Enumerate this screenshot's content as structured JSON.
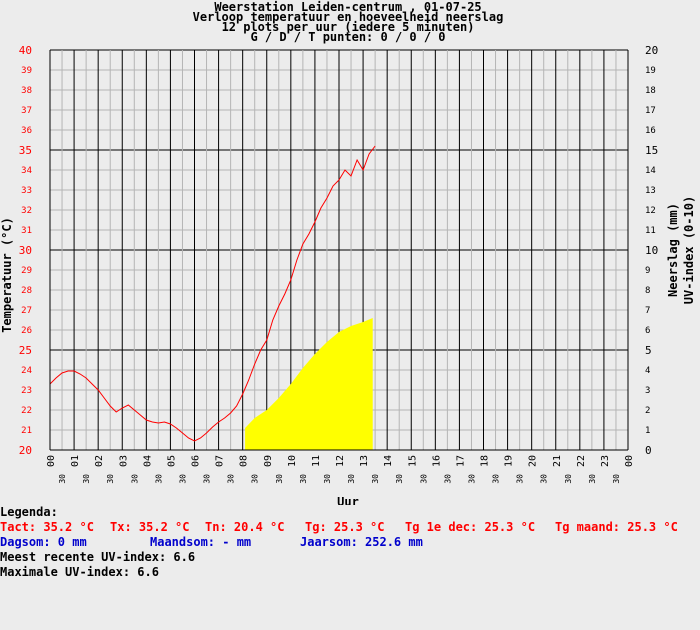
{
  "header": {
    "line1": "Weerstation Leiden-centrum , 01-07-25",
    "line2": "Verloop temperatuur en hoeveelheid neerslag",
    "line3": "12 plots per uur (iedere 5 minuten)",
    "line4": "G / D / T punten: 0 / 0 / 0"
  },
  "colors": {
    "temperature": "#ff0000",
    "uv": "#ffff00",
    "rain_blue": "#0000cc",
    "background": "#ececec"
  },
  "chart_data": {
    "type": "line",
    "xlabel": "Uur",
    "ylabel_left": "Temperatuur (°C)",
    "ylabel_right1": "Neerslag (mm)",
    "ylabel_right2": "UV-index (0-10)",
    "xlim": [
      0,
      24
    ],
    "ylim_left": [
      20,
      40
    ],
    "ylim_right": [
      0,
      20
    ],
    "x_ticks": [
      "00",
      "01",
      "02",
      "03",
      "04",
      "05",
      "06",
      "07",
      "08",
      "09",
      "10",
      "11",
      "12",
      "13",
      "14",
      "15",
      "16",
      "17",
      "18",
      "19",
      "20",
      "21",
      "22",
      "23",
      "00"
    ],
    "x_half_label": "30",
    "y_ticks_left": [
      20,
      21,
      22,
      23,
      24,
      25,
      26,
      27,
      28,
      29,
      30,
      31,
      32,
      33,
      34,
      35,
      36,
      37,
      38,
      39,
      40
    ],
    "y_ticks_right": [
      0,
      1,
      2,
      3,
      4,
      5,
      6,
      7,
      8,
      9,
      10,
      11,
      12,
      13,
      14,
      15,
      16,
      17,
      18,
      19,
      20
    ],
    "grid": true,
    "series": [
      {
        "kind": "temperature_line",
        "color": "#ff0000",
        "x": [
          0.0,
          0.25,
          0.5,
          0.75,
          1.0,
          1.25,
          1.5,
          1.75,
          2.0,
          2.25,
          2.5,
          2.75,
          3.0,
          3.25,
          3.5,
          3.75,
          4.0,
          4.25,
          4.5,
          4.75,
          5.0,
          5.25,
          5.5,
          5.75,
          6.0,
          6.25,
          6.5,
          6.75,
          7.0,
          7.25,
          7.5,
          7.75,
          8.0,
          8.25,
          8.5,
          8.75,
          9.0,
          9.25,
          9.5,
          9.75,
          10.0,
          10.25,
          10.5,
          10.75,
          11.0,
          11.25,
          11.5,
          11.75,
          12.0,
          12.25,
          12.5,
          12.75,
          13.0,
          13.25,
          13.5
        ],
        "y": [
          23.3,
          23.6,
          23.85,
          23.95,
          23.95,
          23.8,
          23.6,
          23.3,
          23.0,
          22.6,
          22.2,
          21.9,
          22.1,
          22.25,
          22.0,
          21.75,
          21.5,
          21.4,
          21.35,
          21.4,
          21.3,
          21.1,
          20.85,
          20.6,
          20.45,
          20.6,
          20.85,
          21.15,
          21.4,
          21.6,
          21.85,
          22.2,
          22.8,
          23.5,
          24.3,
          25.0,
          25.5,
          26.5,
          27.2,
          27.8,
          28.5,
          29.5,
          30.3,
          30.8,
          31.4,
          32.1,
          32.6,
          33.2,
          33.5,
          34.0,
          33.7,
          34.5,
          34.0,
          34.8,
          35.2
        ]
      },
      {
        "kind": "uv_area",
        "color": "#ffff00",
        "x": [
          8.1,
          8.5,
          9.0,
          9.5,
          10.0,
          10.5,
          11.0,
          11.5,
          12.0,
          12.5,
          13.0,
          13.4
        ],
        "y": [
          1.1,
          1.6,
          2.0,
          2.6,
          3.3,
          4.1,
          4.8,
          5.4,
          5.9,
          6.2,
          6.4,
          6.6
        ]
      }
    ]
  },
  "legend": {
    "title": "Legenda:",
    "tact": "Tact: 35.2 °C",
    "tx": "Tx: 35.2 °C",
    "tn": "Tn: 20.4 °C",
    "tg": "Tg: 25.3 °C",
    "tg_dec": "Tg 1e dec: 25.3 °C",
    "tg_maand": "Tg maand: 25.3 °C",
    "dagsom": "Dagsom: 0 mm",
    "maandsom": "Maandsom: - mm",
    "jaarsom": "Jaarsom: 252.6 mm",
    "uv_recent": "Meest recente UV-index: 6.6",
    "uv_max": "Maximale UV-index: 6.6"
  }
}
